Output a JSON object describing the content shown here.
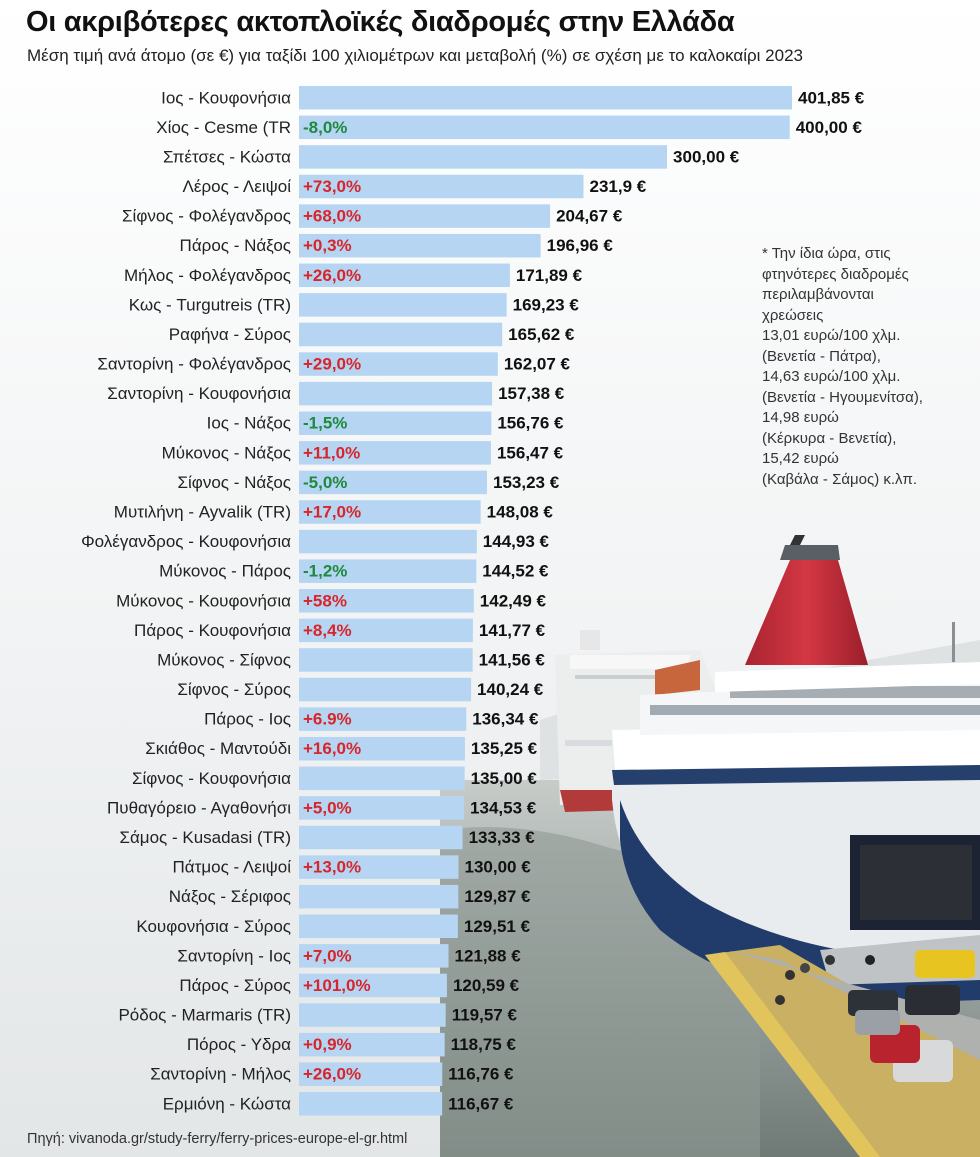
{
  "title": "Οι ακριβότερες ακτοπλοϊκές διαδρομές στην Ελλάδα",
  "subtitle": "Μέση τιμή ανά άτομο (σε €) για ταξίδι 100 χιλιομέτρων και μεταβολή (%) σε σχέση με το καλοκαίρι 2023",
  "note": [
    "* Την ίδια ώρα, στις",
    "φτηνότερες διαδρομές",
    "περιλαμβάνονται",
    "χρεώσεις",
    "13,01 ευρώ/100 χλμ.",
    "(Βενετία - Πάτρα),",
    "14,63 ευρώ/100 χλμ.",
    "(Βενετία - Ηγουμενίτσα),",
    "14,98 ευρώ",
    "(Κέρκυρα - Βενετία),",
    "15,42 ευρώ",
    "(Καβάλα - Σάμος) κ.λπ."
  ],
  "source": "Πηγή: vivanoda.gr/study-ferry/ferry-prices-europe-el-gr.html",
  "colors": {
    "bar": "#b6d5f2",
    "positive_change": "#d7262b",
    "negative_change": "#1d8a3e",
    "value_text": "#111111",
    "label_text": "#222222"
  },
  "chart_data": {
    "type": "bar",
    "orientation": "horizontal",
    "title": "Οι ακριβότερες ακτοπλοϊκές διαδρομές στην Ελλάδα",
    "subtitle": "Μέση τιμή ανά άτομο (σε €) για ταξίδι 100 χιλιομέτρων και μεταβολή (%) σε σχέση με το καλοκαίρι 2023",
    "xlim": [
      0,
      401.85
    ],
    "grid": false,
    "legend": "none",
    "categories": [
      "Ιος - Κουφονήσια",
      "Χίος - Cesme (TR",
      "Σπέτσες - Κώστα",
      "Λέρος - Λειψοί",
      "Σίφνος - Φολέγανδρος",
      "Πάρος - Νάξος",
      "Μήλος - Φολέγανδρος",
      "Κως - Turgutreis (TR)",
      "Ραφήνα - Σύρος",
      "Σαντορίνη - Φολέγανδρος",
      "Σαντορίνη - Κουφονήσια",
      "Ιος - Νάξος",
      "Μύκονος - Νάξος",
      "Σίφνος - Νάξος",
      "Μυτιλήνη - Ayvalik (TR)",
      "Φολέγανδρος - Κουφονήσια",
      "Μύκονος - Πάρος",
      "Μύκονος - Κουφονήσια",
      "Πάρος - Κουφονήσια",
      "Μύκονος - Σίφνος",
      "Σίφνος - Σύρος",
      "Πάρος - Ιος",
      "Σκιάθος - Μαντούδι",
      "Σίφνος - Κουφονήσια",
      "Πυθαγόρειο - Αγαθονήσι",
      "Σάμος - Kusadasi (TR)",
      "Πάτμος - Λειψοί",
      "Νάξος - Σέριφος",
      "Κουφονήσια - Σύρος",
      "Σαντορίνη - Ιος",
      "Πάρος - Σύρος",
      "Ρόδος - Marmaris (TR)",
      "Πόρος - Υδρα",
      "Σαντορίνη - Μήλος",
      "Ερμιόνη - Κώστα"
    ],
    "values": [
      401.85,
      400.0,
      300.0,
      231.9,
      204.67,
      196.96,
      171.89,
      169.23,
      165.62,
      162.07,
      157.38,
      156.76,
      156.47,
      153.23,
      148.08,
      144.93,
      144.52,
      142.49,
      141.77,
      141.56,
      140.24,
      136.34,
      135.25,
      135.0,
      134.53,
      133.33,
      130.0,
      129.87,
      129.51,
      121.88,
      120.59,
      119.57,
      118.75,
      116.76,
      116.67
    ],
    "value_labels": [
      "401,85 €",
      "400,00 €",
      "300,00 €",
      "231,9 €",
      "204,67 €",
      "196,96 €",
      "171,89 €",
      "169,23 €",
      "165,62 €",
      "162,07 €",
      "157,38 €",
      "156,76 €",
      "156,47 €",
      "153,23 €",
      "148,08 €",
      "144,93 €",
      "144,52 €",
      "142,49 €",
      "141,77 €",
      "141,56 €",
      "140,24 €",
      "136,34 €",
      "135,25 €",
      "135,00 €",
      "134,53 €",
      "133,33 €",
      "130,00 €",
      "129,87 €",
      "129,51 €",
      "121,88 €",
      "120,59 €",
      "119,57 €",
      "118,75 €",
      "116,76 €",
      "116,67 €"
    ],
    "change_labels": [
      "",
      "-8,0%",
      "",
      "+73,0%",
      "+68,0%",
      "+0,3%",
      "+26,0%",
      "",
      "",
      "+29,0%",
      "",
      "-1,5%",
      "+11,0%",
      "-5,0%",
      "+17,0%",
      "",
      "-1,2%",
      "+58%",
      "+8,4%",
      "",
      "",
      "+6.9%",
      "+16,0%",
      "",
      "+5,0%",
      "",
      "+13,0%",
      "",
      "",
      "+7,0%",
      "+101,0%",
      "",
      "+0,9%",
      "+26,0%",
      ""
    ]
  }
}
